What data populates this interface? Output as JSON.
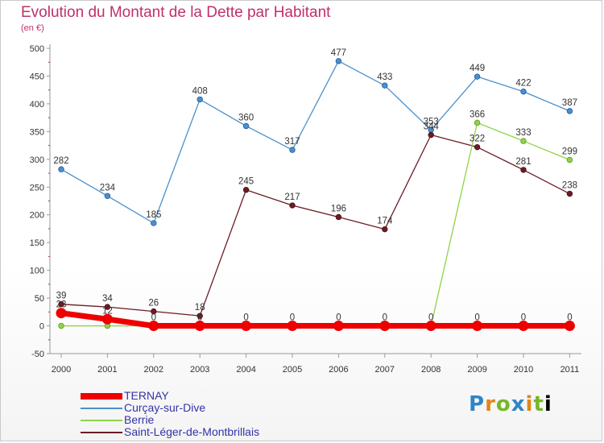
{
  "title": "Evolution du Montant de la Dette par Habitant",
  "unit": "(en €)",
  "logo": [
    "P",
    "r",
    "o",
    "x",
    "i",
    "t",
    "i"
  ],
  "chart_data": {
    "type": "line",
    "x": [
      "2000",
      "2001",
      "2002",
      "2003",
      "2004",
      "2005",
      "2006",
      "2007",
      "2008",
      "2009",
      "2010",
      "2011"
    ],
    "ylim": [
      -50,
      500
    ],
    "yticks": [
      "500",
      "450",
      "400",
      "350",
      "300",
      "250",
      "200",
      "150",
      "100",
      "50",
      "0",
      "-50"
    ],
    "grid": false,
    "legend_placement": "bottom-left",
    "series": [
      {
        "name": "Curçay-sur-Dive",
        "color": "#4a90cc",
        "values": [
          282,
          234,
          185,
          408,
          360,
          317,
          477,
          433,
          353,
          449,
          422,
          387
        ],
        "labels": [
          "282",
          "234",
          "185",
          "408",
          "360",
          "317",
          "477",
          "433",
          "353",
          "449",
          "422",
          "387"
        ]
      },
      {
        "name": "Saint-Léger-de-Montbrillais",
        "color": "#6b1c24",
        "values": [
          39,
          34,
          26,
          18,
          245,
          217,
          196,
          174,
          344,
          322,
          281,
          238
        ],
        "labels": [
          "39",
          "34",
          "26",
          "18",
          "245",
          "217",
          "196",
          "174",
          "344",
          "322",
          "281",
          "238"
        ]
      },
      {
        "name": "Berrie",
        "color": "#8ed34a",
        "values": [
          0,
          0,
          0,
          0,
          0,
          0,
          0,
          0,
          0,
          366,
          333,
          299
        ],
        "labels": [
          "",
          "",
          "",
          "",
          "",
          "",
          "",
          "",
          "",
          "366",
          "333",
          "299"
        ]
      },
      {
        "name": "TERNAY",
        "color": "#ee0000",
        "values": [
          23,
          12,
          0,
          0,
          0,
          0,
          0,
          0,
          0,
          0,
          0,
          0
        ],
        "labels": [
          "23",
          "12",
          "0",
          "0",
          "0",
          "0",
          "0",
          "0",
          "0",
          "0",
          "0",
          "0"
        ]
      }
    ],
    "legend": [
      {
        "name": "TERNAY",
        "color": "#ee0000",
        "thick": true
      },
      {
        "name": "Curçay-sur-Dive",
        "color": "#4a90cc",
        "thick": false
      },
      {
        "name": "Berrie",
        "color": "#8ed34a",
        "thick": false
      },
      {
        "name": "Saint-Léger-de-Montbrillais",
        "color": "#6b1c24",
        "thick": false
      }
    ]
  }
}
